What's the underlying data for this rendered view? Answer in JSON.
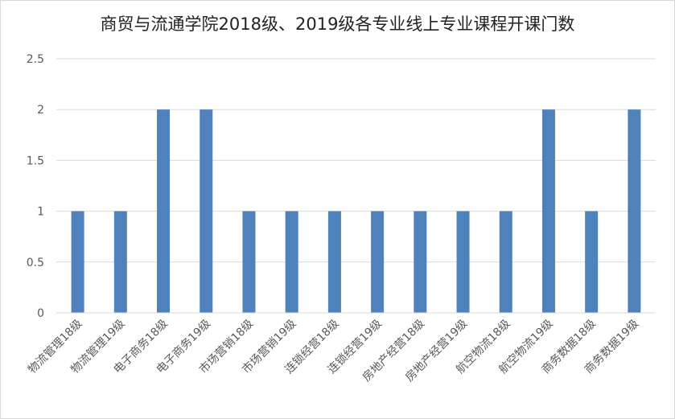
{
  "chart_data": {
    "type": "bar",
    "title": "商贸与流通学院2018级、2019级各专业线上专业课程开课门数",
    "xlabel": "",
    "ylabel": "",
    "categories": [
      "物流管理18级",
      "物流管理19级",
      "电子商务18级",
      "电子商务19级",
      "市场营销18级",
      "市场营销19级",
      "连锁经营18级",
      "连锁经营19级",
      "房地产经营18级",
      "房地产经营19级",
      "航空物流18级",
      "航空物流19级",
      "商务数据18级",
      "商务数据19级"
    ],
    "values": [
      1,
      1,
      2,
      2,
      1,
      1,
      1,
      1,
      1,
      1,
      1,
      2,
      1,
      2
    ],
    "ylim": [
      0,
      2.5
    ],
    "yticks": [
      "0",
      "0.5",
      "1",
      "1.5",
      "2",
      "2.5"
    ],
    "grid": true,
    "legend": "none",
    "bar_color": "#4f81bd",
    "grid_color": "#d9d9d9"
  }
}
